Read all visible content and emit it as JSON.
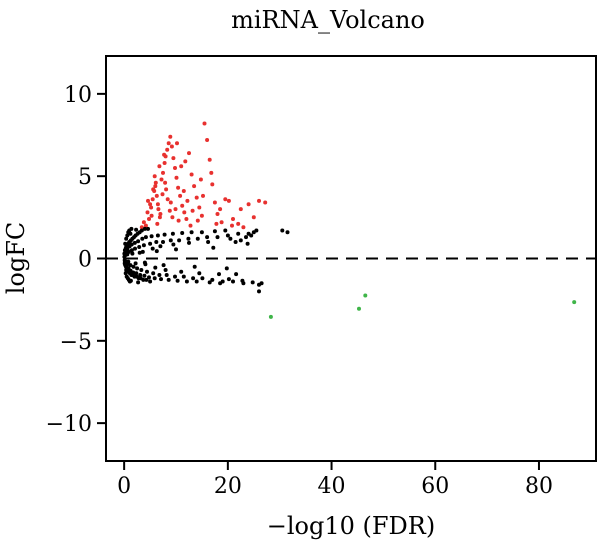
{
  "chart_data": {
    "type": "scatter",
    "title": "miRNA_Volcano",
    "xlabel": "−log10 (FDR)",
    "ylabel": "logFC",
    "xlim": [
      -3.5,
      91
    ],
    "ylim": [
      -12.3,
      12.3
    ],
    "xticks": [
      0,
      20,
      40,
      60,
      80
    ],
    "yticks": [
      -10,
      -5,
      0,
      5,
      10
    ],
    "ytick_labels": [
      "−10",
      "−5",
      "0",
      "5",
      "10"
    ],
    "reference_line": {
      "y": 0,
      "style": "dashed",
      "color": "#000000"
    },
    "grid": false,
    "legend": "none",
    "series": [
      {
        "color": "#e8312f",
        "points": [
          [
            4.2,
            2.0
          ],
          [
            4.8,
            2.4
          ],
          [
            5.2,
            3.1
          ],
          [
            5.5,
            3.6
          ],
          [
            5.8,
            4.1
          ],
          [
            6.0,
            4.4
          ],
          [
            6.3,
            3.8
          ],
          [
            6.6,
            3.0
          ],
          [
            6.9,
            2.5
          ],
          [
            7.2,
            4.8
          ],
          [
            7.5,
            5.2
          ],
          [
            7.8,
            5.8
          ],
          [
            8.0,
            6.2
          ],
          [
            8.3,
            6.6
          ],
          [
            8.6,
            7.0
          ],
          [
            8.9,
            7.4
          ],
          [
            9.2,
            6.8
          ],
          [
            9.5,
            6.1
          ],
          [
            9.8,
            5.5
          ],
          [
            10.1,
            4.9
          ],
          [
            10.4,
            4.3
          ],
          [
            10.8,
            3.8
          ],
          [
            11.2,
            3.2
          ],
          [
            11.6,
            2.8
          ],
          [
            12.0,
            2.4
          ],
          [
            12.5,
            6.4
          ],
          [
            13.0,
            5.1
          ],
          [
            13.5,
            4.4
          ],
          [
            14.0,
            3.7
          ],
          [
            14.5,
            3.1
          ],
          [
            15.0,
            2.6
          ],
          [
            15.5,
            8.2
          ],
          [
            16.0,
            7.2
          ],
          [
            16.5,
            6.0
          ],
          [
            17.0,
            4.5
          ],
          [
            17.5,
            3.4
          ],
          [
            18.0,
            2.7
          ],
          [
            18.8,
            2.2
          ],
          [
            19.5,
            3.6
          ],
          [
            20.2,
            3.5
          ],
          [
            21.0,
            2.4
          ],
          [
            22.0,
            2.1
          ],
          [
            23.0,
            1.9
          ],
          [
            24.0,
            3.3
          ],
          [
            25.0,
            2.5
          ],
          [
            26.0,
            3.5
          ],
          [
            27.2,
            3.4
          ],
          [
            3.4,
            1.9
          ],
          [
            3.8,
            2.2
          ],
          [
            4.5,
            2.8
          ],
          [
            5.0,
            3.3
          ],
          [
            5.6,
            4.2
          ],
          [
            6.1,
            4.6
          ],
          [
            6.5,
            3.3
          ],
          [
            7.0,
            2.7
          ],
          [
            7.4,
            3.9
          ],
          [
            7.9,
            4.6
          ],
          [
            8.4,
            3.6
          ],
          [
            8.8,
            2.9
          ],
          [
            9.3,
            2.5
          ],
          [
            9.9,
            3.0
          ],
          [
            10.5,
            2.3
          ],
          [
            11.0,
            5.6
          ],
          [
            11.5,
            4.1
          ],
          [
            12.2,
            3.5
          ],
          [
            13.2,
            2.9
          ],
          [
            14.2,
            2.3
          ],
          [
            6.8,
            5.6
          ],
          [
            7.7,
            6.3
          ],
          [
            10.2,
            7.0
          ],
          [
            11.8,
            5.9
          ],
          [
            14.8,
            4.8
          ],
          [
            16.8,
            5.2
          ],
          [
            18.5,
            3.0
          ],
          [
            20.8,
            2.0
          ],
          [
            22.5,
            3.0
          ],
          [
            6.4,
            2.1
          ],
          [
            5.3,
            2.6
          ],
          [
            4.6,
            3.5
          ],
          [
            5.9,
            5.0
          ],
          [
            8.1,
            4.2
          ],
          [
            9.0,
            3.4
          ],
          [
            12.8,
            2.0
          ],
          [
            15.2,
            3.8
          ],
          [
            17.8,
            2.1
          ]
        ]
      },
      {
        "color": "#000000",
        "points": [
          [
            0.05,
            0.3
          ],
          [
            0.1,
            -0.3
          ],
          [
            0.15,
            0.5
          ],
          [
            0.2,
            -0.4
          ],
          [
            0.3,
            0.6
          ],
          [
            0.35,
            -0.5
          ],
          [
            0.4,
            0.7
          ],
          [
            0.5,
            -0.6
          ],
          [
            0.6,
            0.8
          ],
          [
            0.7,
            -0.7
          ],
          [
            0.8,
            0.9
          ],
          [
            0.9,
            -0.8
          ],
          [
            1.0,
            1.0
          ],
          [
            1.1,
            -0.9
          ],
          [
            1.3,
            1.1
          ],
          [
            1.4,
            -1.0
          ],
          [
            1.6,
            1.2
          ],
          [
            1.7,
            -1.0
          ],
          [
            1.9,
            1.3
          ],
          [
            2.0,
            -1.1
          ],
          [
            2.2,
            1.4
          ],
          [
            2.4,
            -1.1
          ],
          [
            2.6,
            1.5
          ],
          [
            2.8,
            -1.2
          ],
          [
            3.0,
            1.6
          ],
          [
            3.2,
            -1.2
          ],
          [
            3.4,
            1.7
          ],
          [
            3.7,
            -1.3
          ],
          [
            4.0,
            1.8
          ],
          [
            4.3,
            -1.3
          ],
          [
            4.6,
            1.8
          ],
          [
            5.0,
            -1.4
          ],
          [
            0.05,
            0.1
          ],
          [
            0.1,
            -0.1
          ],
          [
            0.2,
            0.2
          ],
          [
            0.3,
            -0.2
          ],
          [
            0.5,
            0.3
          ],
          [
            0.7,
            -0.3
          ],
          [
            0.9,
            0.4
          ],
          [
            1.2,
            -0.4
          ],
          [
            1.5,
            0.5
          ],
          [
            1.8,
            -0.5
          ],
          [
            2.1,
            0.6
          ],
          [
            2.5,
            -0.6
          ],
          [
            2.9,
            0.7
          ],
          [
            3.3,
            -0.7
          ],
          [
            3.8,
            0.8
          ],
          [
            4.4,
            -0.8
          ],
          [
            5.0,
            0.9
          ],
          [
            5.6,
            -0.9
          ],
          [
            6.2,
            1.0
          ],
          [
            6.8,
            -1.0
          ],
          [
            7.5,
            1.0
          ],
          [
            8.2,
            -1.0
          ],
          [
            9.0,
            1.1
          ],
          [
            9.8,
            -1.1
          ],
          [
            10.6,
            1.1
          ],
          [
            11.5,
            -1.1
          ],
          [
            12.4,
            1.2
          ],
          [
            13.3,
            -1.2
          ],
          [
            14.2,
            1.2
          ],
          [
            15.1,
            -1.2
          ],
          [
            16.0,
            1.3
          ],
          [
            17.0,
            -1.3
          ],
          [
            18.0,
            1.3
          ],
          [
            19.0,
            -1.4
          ],
          [
            20.0,
            1.4
          ],
          [
            21.0,
            -1.4
          ],
          [
            22.0,
            1.5
          ],
          [
            23.0,
            -1.5
          ],
          [
            24.0,
            1.5
          ],
          [
            25.0,
            1.6
          ],
          [
            26.0,
            -1.6
          ],
          [
            0.15,
            -0.2
          ],
          [
            0.25,
            0.4
          ],
          [
            0.45,
            -0.45
          ],
          [
            0.65,
            0.55
          ],
          [
            0.85,
            -0.6
          ],
          [
            1.05,
            0.75
          ],
          [
            1.25,
            -0.75
          ],
          [
            1.45,
            0.85
          ],
          [
            1.75,
            -0.85
          ],
          [
            2.05,
            0.95
          ],
          [
            2.35,
            -0.9
          ],
          [
            2.7,
            1.05
          ],
          [
            3.1,
            -1.0
          ],
          [
            3.5,
            1.2
          ],
          [
            3.9,
            -1.05
          ],
          [
            4.2,
            1.3
          ],
          [
            4.8,
            -1.15
          ],
          [
            5.3,
            1.35
          ],
          [
            5.9,
            -1.2
          ],
          [
            6.5,
            1.4
          ],
          [
            7.1,
            -1.25
          ],
          [
            7.8,
            1.45
          ],
          [
            8.6,
            -1.3
          ],
          [
            9.4,
            1.5
          ],
          [
            10.3,
            -1.35
          ],
          [
            11.2,
            1.55
          ],
          [
            12.1,
            -1.4
          ],
          [
            13.0,
            1.6
          ],
          [
            14.0,
            -1.4
          ],
          [
            15.0,
            1.6
          ],
          [
            16.5,
            -1.45
          ],
          [
            17.5,
            1.65
          ],
          [
            18.5,
            -1.5
          ],
          [
            19.5,
            1.7
          ],
          [
            20.5,
            1.2
          ],
          [
            21.5,
            1.0
          ],
          [
            22.5,
            1.1
          ],
          [
            23.5,
            1.3
          ],
          [
            24.5,
            1.4
          ],
          [
            25.5,
            1.7
          ],
          [
            26.0,
            -2.0
          ],
          [
            26.5,
            -1.5
          ],
          [
            30.5,
            1.7
          ],
          [
            31.5,
            1.6
          ],
          [
            0.4,
            1.2
          ],
          [
            0.6,
            1.4
          ],
          [
            0.8,
            1.6
          ],
          [
            1.0,
            1.7
          ],
          [
            1.2,
            1.5
          ],
          [
            1.4,
            1.8
          ],
          [
            0.3,
            -0.9
          ],
          [
            0.5,
            -1.1
          ],
          [
            0.7,
            -1.2
          ],
          [
            0.9,
            -1.3
          ],
          [
            1.1,
            -1.4
          ],
          [
            1.3,
            -1.35
          ],
          [
            2.3,
            1.75
          ],
          [
            2.7,
            -1.45
          ],
          [
            3.6,
            0.4
          ],
          [
            4.1,
            -0.35
          ],
          [
            5.5,
            0.6
          ],
          [
            6.0,
            -0.55
          ],
          [
            7.0,
            0.75
          ],
          [
            8.0,
            -0.7
          ],
          [
            9.5,
            0.85
          ],
          [
            11.0,
            -0.8
          ],
          [
            12.5,
            0.95
          ],
          [
            14.5,
            -0.9
          ],
          [
            16.2,
            1.0
          ],
          [
            18.3,
            -0.95
          ],
          [
            20.2,
            -1.25
          ],
          [
            22.8,
            -1.35
          ],
          [
            24.8,
            -1.45
          ],
          [
            0.2,
            0.9
          ],
          [
            0.4,
            -0.7
          ],
          [
            0.6,
            0.25
          ],
          [
            0.8,
            -0.2
          ],
          [
            1.6,
            0.3
          ],
          [
            2.2,
            -0.3
          ],
          [
            3.0,
            0.35
          ],
          [
            4.0,
            -0.25
          ],
          [
            6.3,
            0.45
          ],
          [
            7.6,
            -0.4
          ],
          [
            10.0,
            0.55
          ],
          [
            13.6,
            -0.5
          ],
          [
            17.2,
            0.65
          ],
          [
            19.8,
            -0.6
          ],
          [
            21.6,
            -0.95
          ],
          [
            23.8,
            0.9
          ]
        ]
      },
      {
        "color": "#3fb549",
        "points": [
          [
            28.3,
            -3.55
          ],
          [
            45.3,
            -3.05
          ],
          [
            46.5,
            -2.25
          ],
          [
            86.8,
            -2.65
          ]
        ]
      }
    ]
  }
}
